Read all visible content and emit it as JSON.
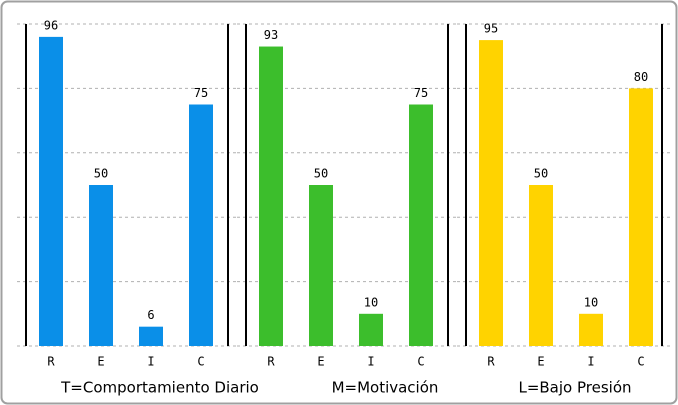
{
  "chart_data": [
    {
      "type": "bar",
      "xlabel": "T=Comportamiento Diario",
      "categories": [
        "R",
        "E",
        "I",
        "C"
      ],
      "values": [
        96,
        50,
        6,
        75
      ],
      "color": "#0a8fe8",
      "ylim": [
        0,
        100
      ],
      "yticks": [
        0,
        20,
        40,
        60,
        80,
        100
      ],
      "grid": true
    },
    {
      "type": "bar",
      "xlabel": "M=Motivación",
      "categories": [
        "R",
        "E",
        "I",
        "C"
      ],
      "values": [
        93,
        50,
        10,
        75
      ],
      "color": "#3cbe2c",
      "ylim": [
        0,
        100
      ],
      "yticks": [
        0,
        20,
        40,
        60,
        80,
        100
      ],
      "grid": true
    },
    {
      "type": "bar",
      "xlabel": "L=Bajo Presión",
      "categories": [
        "R",
        "E",
        "I",
        "C"
      ],
      "values": [
        95,
        50,
        10,
        80
      ],
      "color": "#ffd300",
      "ylim": [
        0,
        100
      ],
      "yticks": [
        0,
        20,
        40,
        60,
        80,
        100
      ],
      "grid": true
    }
  ]
}
